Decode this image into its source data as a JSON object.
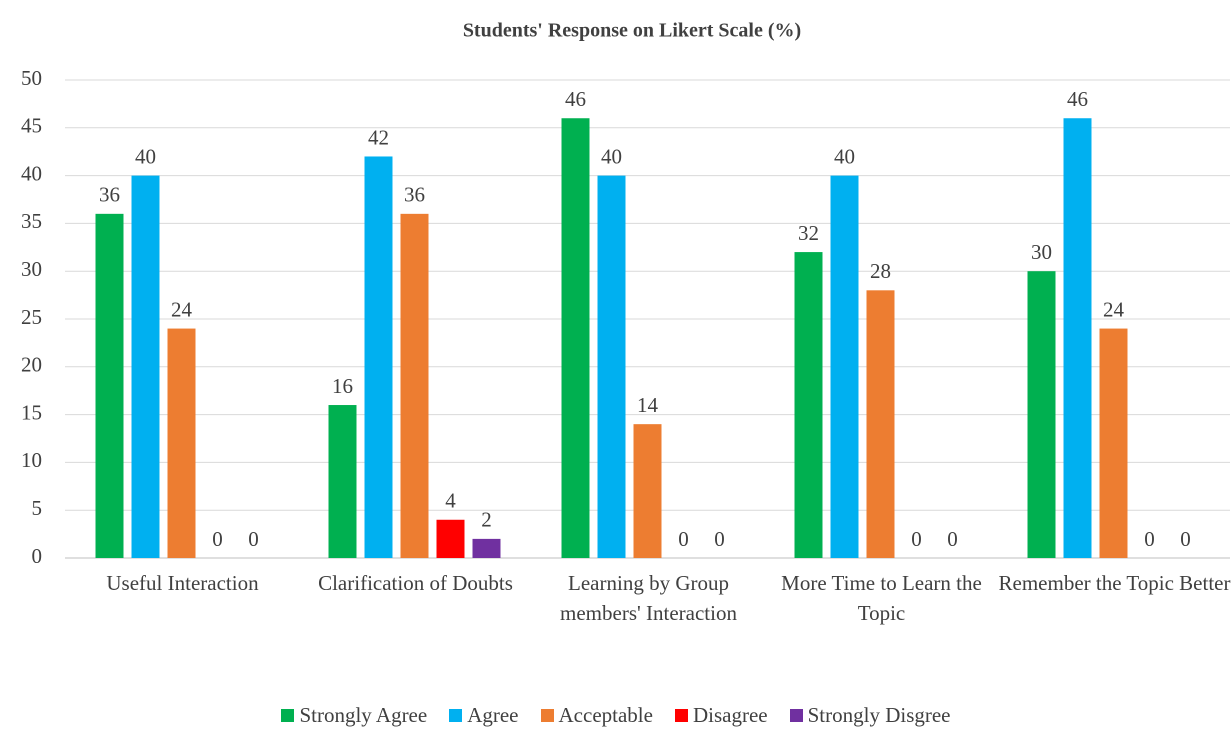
{
  "chart_data": {
    "type": "bar",
    "title": "Students' Response on Likert Scale (%)",
    "categories": [
      "Useful Interaction",
      "Clarification of Doubts",
      "Learning by Group members' Interaction",
      "More Time to Learn the Topic",
      "Remember the Topic Better"
    ],
    "series": [
      {
        "name": "Strongly Agree",
        "color": "#00b050",
        "values": [
          36,
          16,
          46,
          32,
          30
        ]
      },
      {
        "name": "Agree",
        "color": "#00b0f0",
        "values": [
          40,
          42,
          40,
          40,
          46
        ]
      },
      {
        "name": "Acceptable",
        "color": "#ed7d31",
        "values": [
          24,
          36,
          14,
          28,
          24
        ]
      },
      {
        "name": "Disagree",
        "color": "#ff0000",
        "values": [
          0,
          4,
          0,
          0,
          0
        ]
      },
      {
        "name": "Strongly Disgree",
        "color": "#7030a0",
        "values": [
          0,
          2,
          0,
          0,
          0
        ]
      }
    ],
    "ylim": [
      0,
      50
    ],
    "yticks": [
      0,
      5,
      10,
      15,
      20,
      25,
      30,
      35,
      40,
      45,
      50
    ],
    "grid": true,
    "legend": "bottom"
  }
}
